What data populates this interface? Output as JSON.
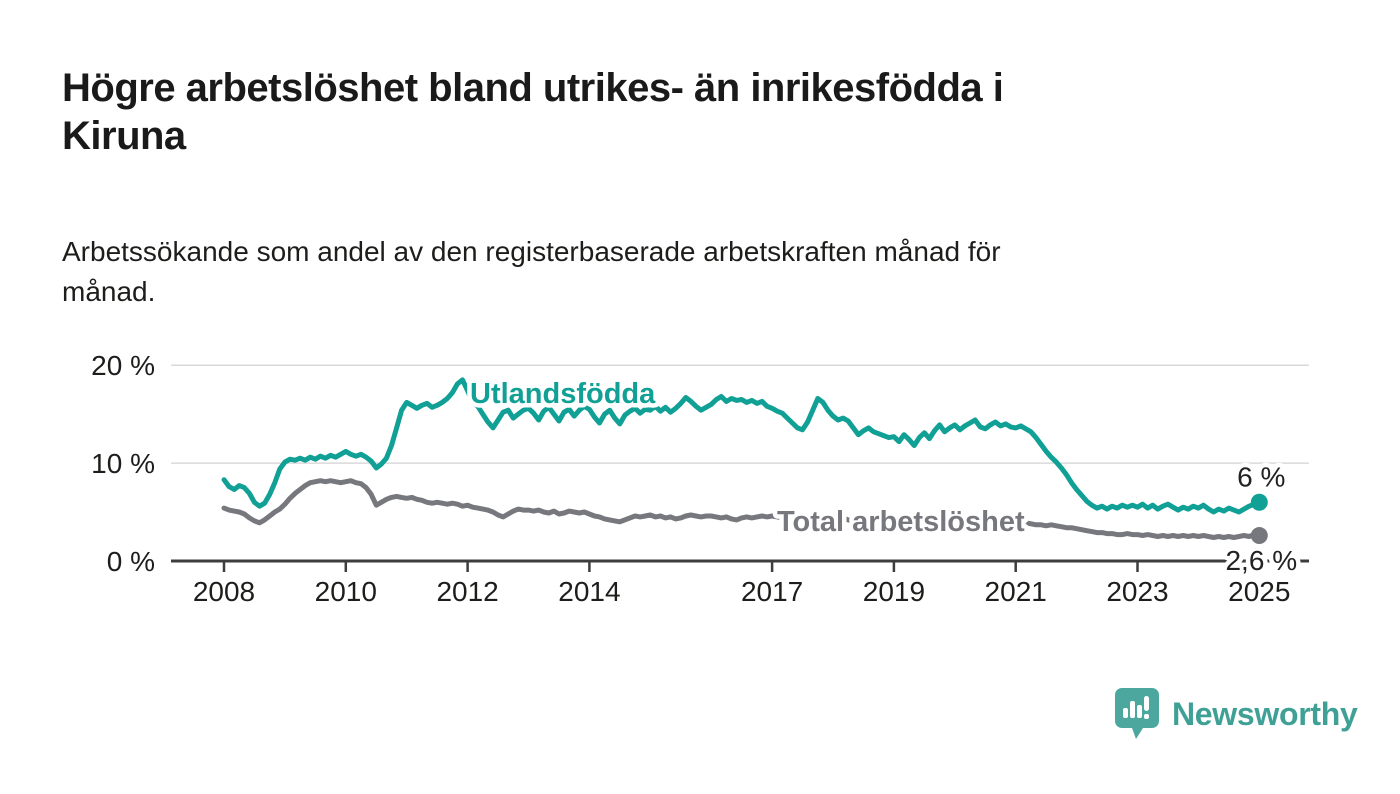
{
  "header": {
    "title_line1": "Högre arbetslöshet bland utrikes- än inrikesfödda i",
    "title_line2": "Kiruna",
    "subtitle_line1": "Arbetssökande som andel av den registerbaserade arbetskraften månad för",
    "subtitle_line2": "månad."
  },
  "footer": {
    "brand": "Newsworthy"
  },
  "colors": {
    "accent_teal": "#11a095",
    "series_gray": "#77777e",
    "logo_teal": "#4ca89f",
    "logo_text_teal": "#3fa096",
    "axis_dark": "#3d3d3d",
    "grid_light": "#d9d9d9",
    "text_dark": "#1d1d1b"
  },
  "chart_data": {
    "type": "line",
    "title": "Högre arbetslöshet bland utrikes- än inrikesfödda i Kiruna",
    "subtitle": "Arbetssökande som andel av den registerbaserade arbetskraften månad för månad.",
    "x_unit": "månad",
    "x_start_year": 2008,
    "points_per_year": 12,
    "x_range": [
      2008.0,
      2025.0
    ],
    "ylim": [
      0,
      20.5
    ],
    "grid": "horizontal",
    "x_ticks": [
      "2008",
      "2010",
      "2012",
      "2014",
      "2017",
      "2019",
      "2021",
      "2023",
      "2025"
    ],
    "y_ticks": [
      {
        "value": 0,
        "label": "0 %"
      },
      {
        "value": 10,
        "label": "10 %"
      },
      {
        "value": 20,
        "label": "20 %"
      }
    ],
    "series": [
      {
        "name": "Utlandsfödda",
        "color": "#11a095",
        "end_label": "6 %",
        "end_value": 6.0,
        "values": [
          8.3,
          7.6,
          7.3,
          7.7,
          7.5,
          6.9,
          6.0,
          5.6,
          5.9,
          6.8,
          8.0,
          9.4,
          10.1,
          10.4,
          10.3,
          10.5,
          10.3,
          10.6,
          10.4,
          10.7,
          10.5,
          10.8,
          10.6,
          10.9,
          11.2,
          10.9,
          10.7,
          10.9,
          10.6,
          10.2,
          9.5,
          9.9,
          10.5,
          11.8,
          13.6,
          15.4,
          16.2,
          15.9,
          15.6,
          15.9,
          16.1,
          15.7,
          15.9,
          16.2,
          16.6,
          17.2,
          18.1,
          18.5,
          17.4,
          16.2,
          15.8,
          15.0,
          14.2,
          13.6,
          14.4,
          15.2,
          15.4,
          14.6,
          15.0,
          15.4,
          15.6,
          15.1,
          14.4,
          15.3,
          15.7,
          15.0,
          14.3,
          15.2,
          15.5,
          14.8,
          15.4,
          15.8,
          15.5,
          14.7,
          14.1,
          15.0,
          15.4,
          14.6,
          14.0,
          14.9,
          15.3,
          15.6,
          15.1,
          15.5,
          15.4,
          15.8,
          15.3,
          15.7,
          15.2,
          15.6,
          16.1,
          16.7,
          16.3,
          15.8,
          15.4,
          15.7,
          16.0,
          16.5,
          16.8,
          16.3,
          16.6,
          16.4,
          16.5,
          16.2,
          16.4,
          16.1,
          16.3,
          15.8,
          15.6,
          15.3,
          15.1,
          14.6,
          14.1,
          13.6,
          13.4,
          14.2,
          15.4,
          16.6,
          16.2,
          15.4,
          14.8,
          14.4,
          14.6,
          14.3,
          13.6,
          12.9,
          13.3,
          13.6,
          13.2,
          13.0,
          12.8,
          12.6,
          12.7,
          12.2,
          12.9,
          12.4,
          11.8,
          12.6,
          13.1,
          12.5,
          13.3,
          13.9,
          13.2,
          13.6,
          13.9,
          13.4,
          13.8,
          14.1,
          14.4,
          13.7,
          13.5,
          13.9,
          14.2,
          13.8,
          14.0,
          13.7,
          13.6,
          13.8,
          13.5,
          13.2,
          12.6,
          11.9,
          11.2,
          10.6,
          10.1,
          9.5,
          8.8,
          8.0,
          7.3,
          6.7,
          6.1,
          5.7,
          5.4,
          5.6,
          5.3,
          5.6,
          5.4,
          5.7,
          5.5,
          5.7,
          5.5,
          5.8,
          5.4,
          5.7,
          5.3,
          5.6,
          5.8,
          5.5,
          5.2,
          5.5,
          5.3,
          5.6,
          5.4,
          5.7,
          5.3,
          5.0,
          5.3,
          5.1,
          5.4,
          5.2,
          5.0,
          5.3,
          5.6,
          5.8,
          6.0
        ]
      },
      {
        "name": "Total arbetslöshet",
        "color": "#77777e",
        "end_label": "2,6 %",
        "end_value": 2.6,
        "values": [
          5.4,
          5.2,
          5.1,
          5.0,
          4.8,
          4.4,
          4.1,
          3.9,
          4.2,
          4.6,
          5.0,
          5.3,
          5.8,
          6.4,
          6.9,
          7.3,
          7.7,
          8.0,
          8.1,
          8.2,
          8.1,
          8.2,
          8.1,
          8.0,
          8.1,
          8.2,
          8.0,
          7.9,
          7.5,
          6.8,
          5.7,
          6.0,
          6.3,
          6.5,
          6.6,
          6.5,
          6.4,
          6.5,
          6.3,
          6.2,
          6.0,
          5.9,
          6.0,
          5.9,
          5.8,
          5.9,
          5.8,
          5.6,
          5.7,
          5.5,
          5.4,
          5.3,
          5.2,
          5.0,
          4.7,
          4.5,
          4.8,
          5.1,
          5.3,
          5.2,
          5.2,
          5.1,
          5.2,
          5.0,
          4.9,
          5.1,
          4.8,
          4.9,
          5.1,
          5.0,
          4.9,
          5.0,
          4.8,
          4.6,
          4.5,
          4.3,
          4.2,
          4.1,
          4.0,
          4.2,
          4.4,
          4.6,
          4.5,
          4.6,
          4.7,
          4.5,
          4.6,
          4.4,
          4.5,
          4.3,
          4.4,
          4.6,
          4.7,
          4.6,
          4.5,
          4.6,
          4.6,
          4.5,
          4.4,
          4.5,
          4.3,
          4.2,
          4.4,
          4.5,
          4.4,
          4.5,
          4.6,
          4.5,
          4.6,
          4.5,
          4.4,
          4.5,
          4.3,
          4.4,
          4.2,
          4.3,
          4.4,
          4.5,
          4.4,
          4.5,
          4.4,
          4.3,
          4.4,
          4.2,
          4.1,
          4.0,
          3.9,
          4.0,
          4.1,
          4.2,
          4.1,
          4.2,
          4.1,
          4.0,
          4.1,
          3.9,
          4.0,
          3.9,
          3.8,
          3.9,
          4.0,
          4.1,
          4.0,
          4.1,
          4.0,
          4.1,
          4.2,
          4.3,
          4.2,
          4.1,
          4.0,
          4.1,
          4.0,
          3.9,
          3.8,
          3.9,
          3.9,
          3.8,
          3.9,
          3.8,
          3.7,
          3.7,
          3.6,
          3.7,
          3.6,
          3.5,
          3.4,
          3.4,
          3.3,
          3.2,
          3.1,
          3.0,
          2.9,
          2.9,
          2.8,
          2.8,
          2.7,
          2.7,
          2.8,
          2.7,
          2.7,
          2.6,
          2.7,
          2.6,
          2.5,
          2.6,
          2.5,
          2.6,
          2.5,
          2.6,
          2.5,
          2.6,
          2.5,
          2.6,
          2.5,
          2.4,
          2.5,
          2.4,
          2.5,
          2.4,
          2.5,
          2.6,
          2.5,
          2.7,
          2.6
        ]
      }
    ],
    "legend_position": "inline-labels"
  }
}
